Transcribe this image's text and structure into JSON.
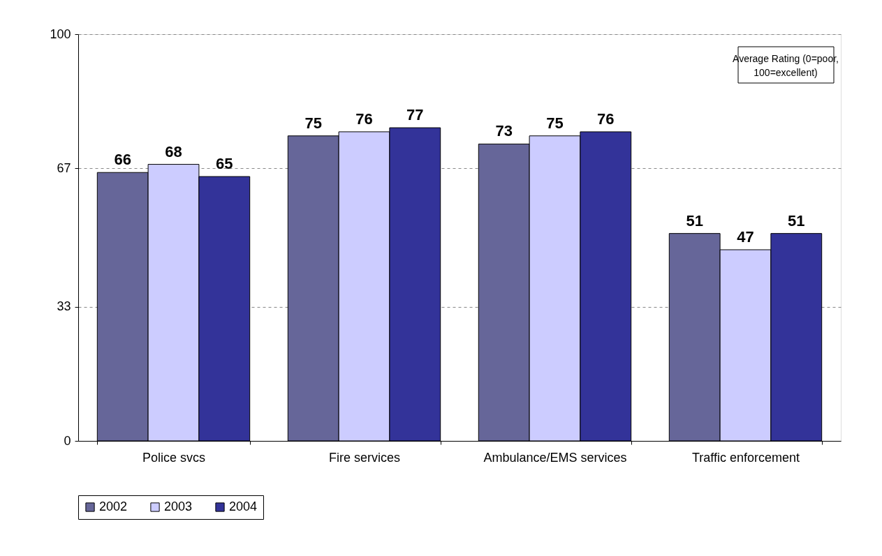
{
  "chart_data": {
    "type": "bar",
    "categories": [
      "Police svcs",
      "Fire services",
      "Ambulance/EMS services",
      "Traffic enforcement"
    ],
    "series": [
      {
        "name": "2002",
        "color": "#666699",
        "values": [
          66,
          75,
          73,
          51
        ]
      },
      {
        "name": "2003",
        "color": "#ccccff",
        "values": [
          68,
          76,
          75,
          47
        ]
      },
      {
        "name": "2004",
        "color": "#333399",
        "values": [
          65,
          77,
          76,
          51
        ]
      }
    ],
    "ylim": [
      0,
      100
    ],
    "yticks": [
      0,
      33,
      67,
      100
    ],
    "grid": "y",
    "legend": "bottom",
    "data_labels": true,
    "annotations": [
      "Average Rating (0=poor, 100=excellent)"
    ]
  }
}
